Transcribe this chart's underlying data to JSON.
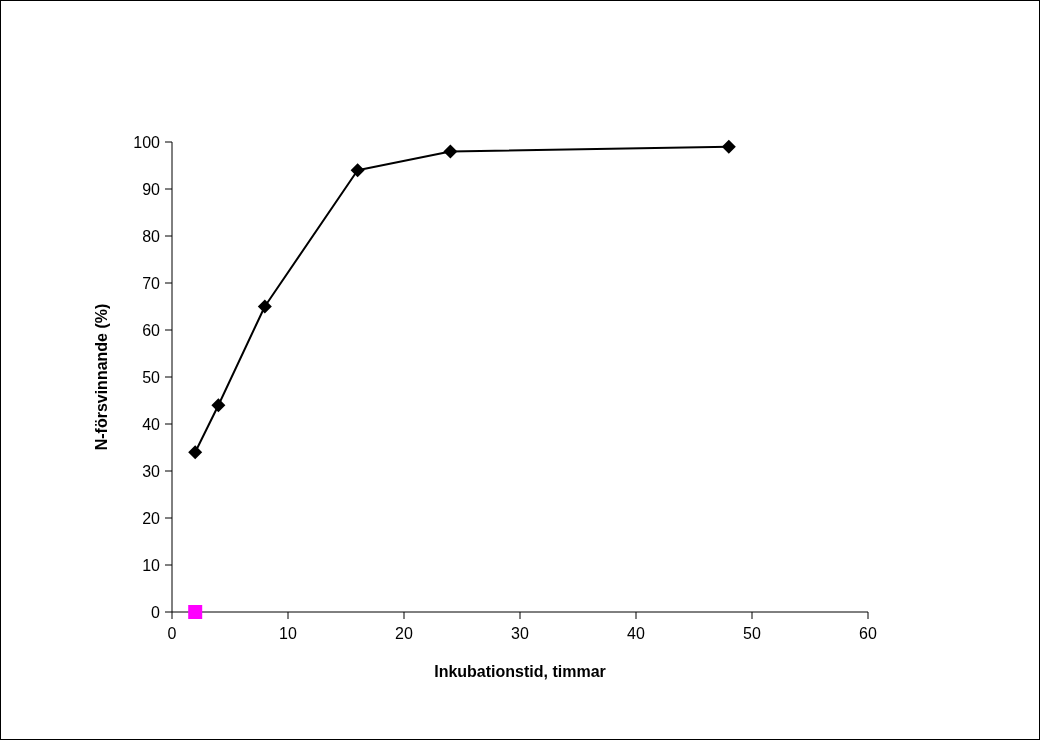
{
  "chart_data": {
    "type": "line",
    "xlabel": "Inkubationstid, timmar",
    "ylabel": "N-försvinnande (%)",
    "xlim": [
      0,
      60
    ],
    "xticks": [
      0,
      10,
      20,
      30,
      40,
      50,
      60
    ],
    "ylim": [
      0,
      100
    ],
    "yticks": [
      0,
      10,
      20,
      30,
      40,
      50,
      60,
      70,
      80,
      90,
      100
    ],
    "grid": false,
    "series": [
      {
        "color": "#000000",
        "marker": "diamond",
        "x": [
          2,
          4,
          8,
          16,
          24,
          48
        ],
        "values": [
          34,
          44,
          65,
          94,
          98,
          99
        ]
      },
      {
        "type": "scatter",
        "color": "#ff00ff",
        "marker": "square",
        "x": [
          2
        ],
        "values": [
          0
        ]
      }
    ]
  }
}
